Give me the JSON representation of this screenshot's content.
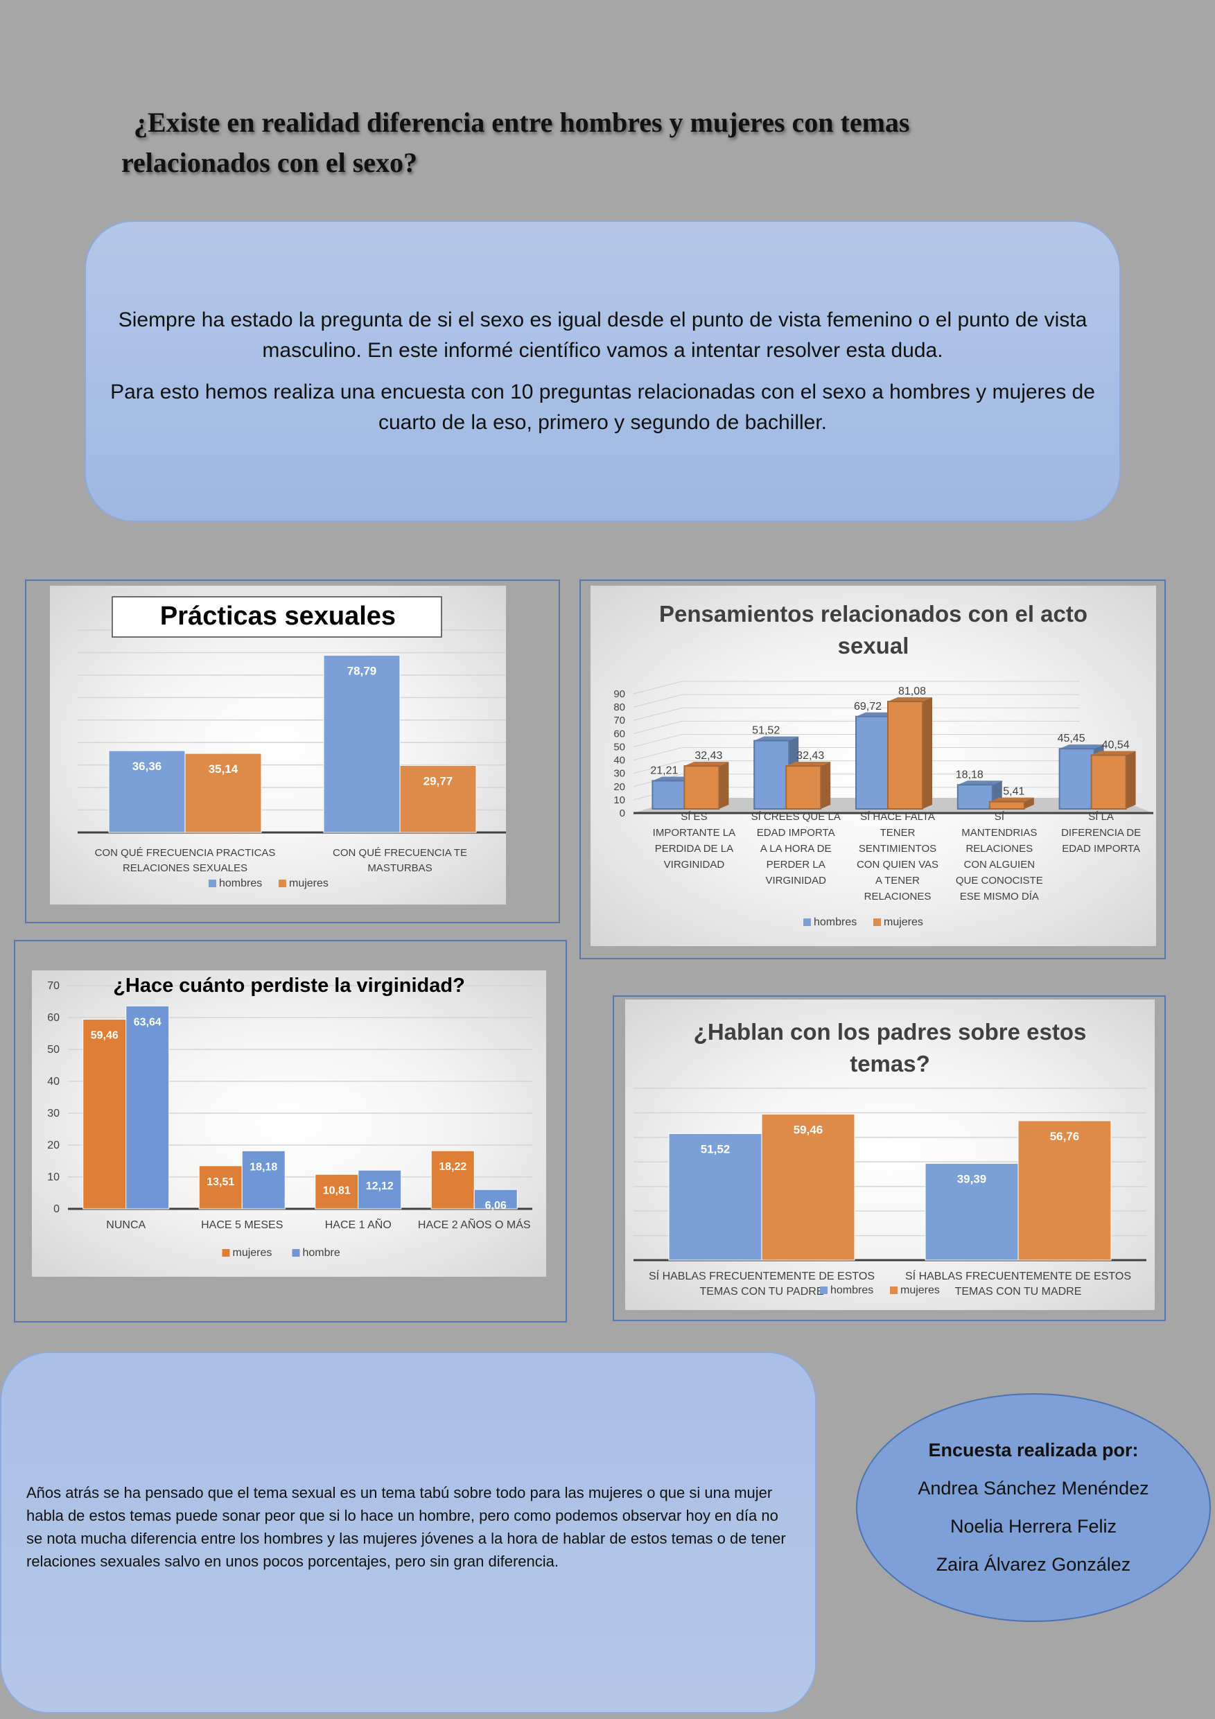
{
  "page": {
    "title_line1": "¿Existe en realidad diferencia entre hombres y mujeres con temas",
    "title_line2": "relacionados con el sexo?",
    "intro_p1": "Siempre ha estado la pregunta de si el sexo es igual desde el punto de vista femenino o el punto de vista masculino. En este informé científico vamos a intentar resolver esta duda.",
    "intro_p2": "Para esto hemos realiza una encuesta con 10 preguntas relacionadas con el sexo a hombres y mujeres de cuarto de la eso, primero y segundo de bachiller.",
    "conclusion": "Años atrás se ha pensado que el tema sexual es un tema tabú sobre todo para las mujeres o que si una mujer habla de estos temas puede sonar peor que si lo hace un hombre, pero como podemos observar hoy en día no se nota mucha diferencia entre los hombres y las mujeres jóvenes a la hora de hablar de estos temas o de tener relaciones sexuales salvo en unos pocos porcentajes, pero sin gran diferencia.",
    "credits_title": "Encuesta realizada por:",
    "credits_names": [
      "Andrea Sánchez Menéndez",
      "Noelia Herrera Feliz",
      "Zaira Álvarez González"
    ]
  },
  "colors": {
    "blue": "#7ba0d8",
    "orange": "#de8a48",
    "blue_dark": "#4472c4",
    "orange_dark": "#ed7d31"
  },
  "chart_data": [
    {
      "type": "bar",
      "title": "Prácticas sexuales",
      "categories": [
        "CON QUÉ FRECUENCIA PRACTICAS RELACIONES SEXUALES",
        "CON QUÉ FRECUENCIA TE MASTURBAS"
      ],
      "series": [
        {
          "name": "hombres",
          "values": [
            36.36,
            78.79
          ],
          "color": "#7ba0d8"
        },
        {
          "name": "mujeres",
          "values": [
            35.14,
            29.77
          ],
          "color": "#de8a48"
        }
      ],
      "ylim": [
        0,
        90
      ],
      "grid": true,
      "legend": "bottom"
    },
    {
      "type": "bar",
      "title": "Pensamientos relacionados con el acto sexual",
      "categories": [
        "SÍ ES IMPORTANTE LA PERDIDA DE LA VIRGINIDAD",
        "SÍ CREES QUE LA EDAD IMPORTA A LA HORA DE PERDER LA VIRGINIDAD",
        "SÍ HACE FALTA TENER SENTIMIENTOS CON QUIEN VAS A TENER RELACIONES",
        "SÍ MANTENDRIAS RELACIONES CON ALGUIEN QUE CONOCISTE ESE MISMO DÍA",
        "SÍ LA DIFERENCIA DE EDAD IMPORTA"
      ],
      "series": [
        {
          "name": "hombres",
          "values": [
            21.21,
            51.52,
            69.72,
            18.18,
            45.45
          ],
          "color": "#7ba0d8"
        },
        {
          "name": "mujeres",
          "values": [
            32.43,
            32.43,
            81.08,
            5.41,
            40.54
          ],
          "color": "#de8a48"
        }
      ],
      "ylim": [
        0,
        90
      ],
      "yticks": [
        0,
        10,
        20,
        30,
        40,
        50,
        60,
        70,
        80,
        90
      ],
      "grid": true,
      "legend": "bottom"
    },
    {
      "type": "bar",
      "title": "¿Hace cuánto perdiste la virginidad?",
      "categories": [
        "NUNCA",
        "HACE 5 MESES",
        "HACE 1 AÑO",
        "HACE 2 AÑOS O MÁS"
      ],
      "series": [
        {
          "name": "mujeres",
          "values": [
            59.46,
            13.51,
            10.81,
            18.22
          ],
          "color": "#de7f35"
        },
        {
          "name": "hombre",
          "values": [
            63.64,
            18.18,
            12.12,
            6.06
          ],
          "color": "#6f97d6"
        }
      ],
      "ylim": [
        0,
        70
      ],
      "yticks": [
        0,
        10,
        20,
        30,
        40,
        50,
        60,
        70
      ],
      "grid": true,
      "legend": "bottom"
    },
    {
      "type": "bar",
      "title": "¿Hablan con los padres sobre estos temas?",
      "categories": [
        "SÍ  HABLAS FRECUENTEMENTE DE ESTOS TEMAS CON TU PADRE",
        "SÍ HABLAS FRECUENTEMENTE DE ESTOS TEMAS CON TU MADRE"
      ],
      "series": [
        {
          "name": "hombres",
          "values": [
            51.52,
            39.39
          ],
          "color": "#7ba0d8"
        },
        {
          "name": "mujeres",
          "values": [
            59.46,
            56.76
          ],
          "color": "#de8a48"
        }
      ],
      "ylim": [
        0,
        70
      ],
      "grid": true,
      "legend": "bottom"
    }
  ]
}
